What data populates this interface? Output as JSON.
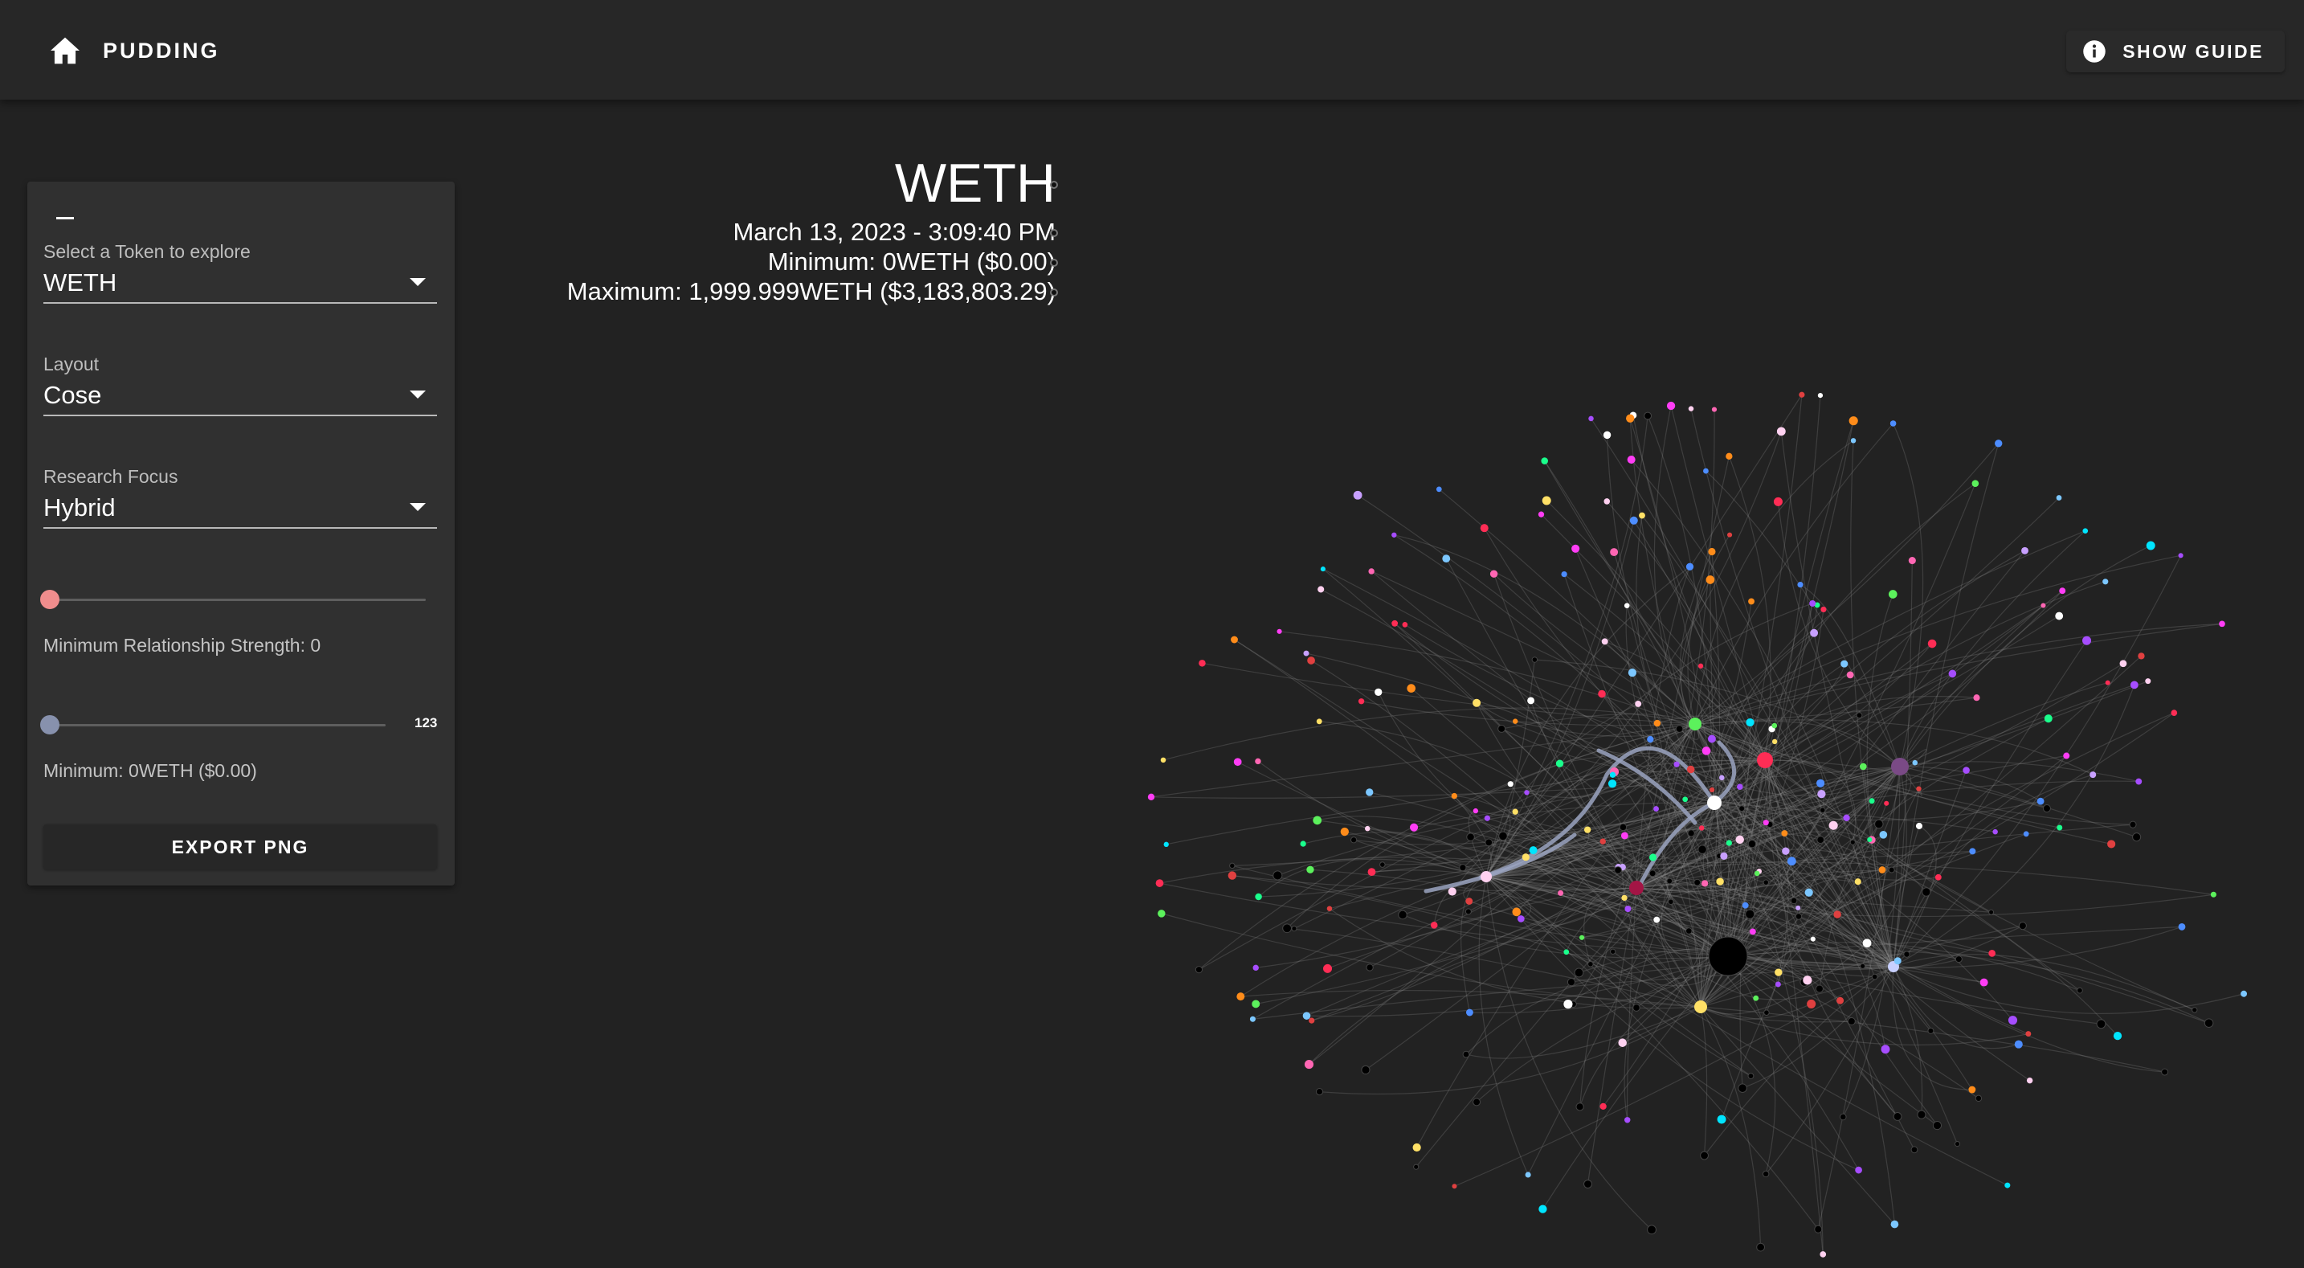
{
  "appbar": {
    "title": "PUDDING",
    "home_icon": "home-icon",
    "guide_label": "SHOW GUIDE",
    "guide_icon": "info-icon",
    "background": "#272727"
  },
  "panel": {
    "collapse_icon": "minus-icon",
    "token_select": {
      "label": "Select a Token to explore",
      "value": "WETH"
    },
    "layout_select": {
      "label": "Layout",
      "value": "Cose"
    },
    "focus_select": {
      "label": "Research Focus",
      "value": "Hybrid"
    },
    "strength_slider": {
      "value": 0,
      "label": "Minimum Relationship Strength: 0",
      "thumb_color": "#f08d8d"
    },
    "amount_slider": {
      "value": 0,
      "max_label": "123",
      "label": "Minimum: 0WETH ($0.00)",
      "thumb_color": "#8791ad"
    },
    "export_label": "EXPORT PNG"
  },
  "graph": {
    "title": "WETH",
    "date": "March 13, 2023 - 3:09:40 PM",
    "minimum": "Minimum: 0WETH ($0.00)",
    "maximum": "Maximum: 1,999.999WETH ($3,183,803.29)",
    "background": "#222222",
    "edge_color": "#8a8a8a",
    "highlight_edge_color": "#9aa3c0",
    "node_colors": [
      "#ff3df5",
      "#ff2d55",
      "#5cf15c",
      "#4d8dff",
      "#ffe066",
      "#ffffff",
      "#00e5ff",
      "#a64dff",
      "#ff8c1a",
      "#1aff8c",
      "#c8a0ff",
      "#ff66b3",
      "#7cc7ff",
      "#000000",
      "#e04040",
      "#ffd1f0"
    ]
  }
}
